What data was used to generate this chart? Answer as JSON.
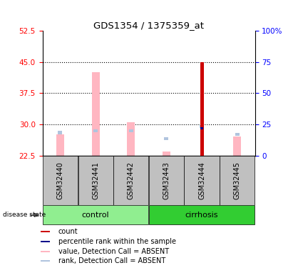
{
  "title": "GDS1354 / 1375359_at",
  "samples": [
    "GSM32440",
    "GSM32441",
    "GSM32442",
    "GSM32443",
    "GSM32444",
    "GSM32445"
  ],
  "left_yaxis": {
    "min": 22.5,
    "max": 52.5,
    "ticks": [
      22.5,
      30,
      37.5,
      45,
      52.5
    ]
  },
  "right_yaxis": {
    "ticks": [
      0,
      25,
      50,
      75,
      100
    ],
    "labels": [
      "0",
      "25",
      "50",
      "75",
      "100%"
    ]
  },
  "value_absent": [
    27.5,
    42.5,
    30.5,
    23.5,
    22.5,
    27.0
  ],
  "rank_absent": [
    28.0,
    28.5,
    28.5,
    26.5,
    29.5,
    27.5
  ],
  "count_value": [
    22.5,
    22.5,
    22.5,
    22.5,
    45.0,
    22.5
  ],
  "percentile_rank": [
    22.5,
    22.5,
    22.5,
    22.5,
    29.0,
    22.5
  ],
  "colors": {
    "value_absent": "#FFB6C1",
    "rank_absent": "#B0C4DE",
    "count": "#CC0000",
    "percentile": "#00008B",
    "control_bg": "#90EE90",
    "cirrhosis_bg": "#32CD32",
    "sample_bg": "#C0C0C0"
  },
  "legend_items": [
    {
      "color": "#CC0000",
      "label": "count"
    },
    {
      "color": "#00008B",
      "label": "percentile rank within the sample"
    },
    {
      "color": "#FFB6C1",
      "label": "value, Detection Call = ABSENT"
    },
    {
      "color": "#B0C4DE",
      "label": "rank, Detection Call = ABSENT"
    }
  ],
  "control_group": [
    0,
    1,
    2
  ],
  "cirrhosis_group": [
    3,
    4,
    5
  ]
}
